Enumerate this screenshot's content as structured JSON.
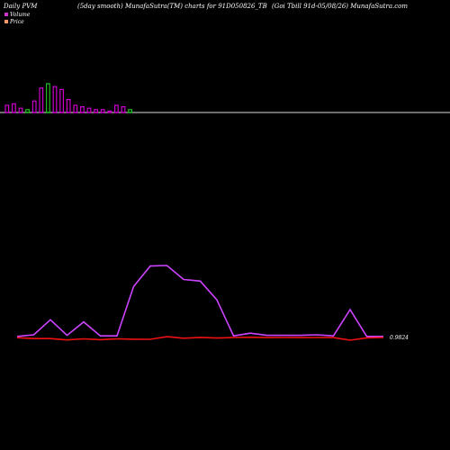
{
  "header": {
    "left": "Daily PVM",
    "center": "(5day smooth) MunafaSutra(TM) charts for 91D050826_TB",
    "right": "(Goi  Tbill 91d-05/08/26) MunafaSutra.com"
  },
  "legend": [
    {
      "label": "Volume",
      "color": "#cc33cc"
    },
    {
      "label": "Price",
      "color": "#ff9966"
    }
  ],
  "chart_data": [
    {
      "type": "bar",
      "series": [
        {
          "name": "Volume",
          "values": [
            5,
            6,
            3,
            2,
            8,
            17,
            20,
            18,
            16,
            9,
            5,
            4,
            3,
            2,
            2,
            1,
            5,
            4,
            2
          ]
        }
      ],
      "colors": {
        "up": "#cc00cc",
        "down": "#22bb22"
      },
      "directions": [
        "up",
        "up",
        "up",
        "down",
        "up",
        "up",
        "down",
        "up",
        "up",
        "up",
        "up",
        "up",
        "up",
        "up",
        "up",
        "up",
        "up",
        "up",
        "down"
      ],
      "grid": false
    },
    {
      "type": "line",
      "x": [
        0,
        1,
        2,
        3,
        4,
        5,
        6,
        7,
        8,
        9,
        10,
        11,
        12,
        13,
        14,
        15,
        16,
        17,
        18,
        19,
        20,
        21,
        22
      ],
      "series": [
        {
          "name": "Volume",
          "color": "#cc44ff",
          "values": [
            2,
            5,
            33,
            4,
            29,
            3,
            3,
            95,
            133,
            134,
            108,
            105,
            70,
            3,
            8,
            4,
            4,
            4,
            5,
            3,
            52,
            2,
            2
          ]
        },
        {
          "name": "Price",
          "color": "#ee1111",
          "values": [
            0.94,
            0.6,
            0.6,
            0.1,
            0.5,
            0.2,
            0.5,
            0.35,
            0.34,
            1.3,
            0.75,
            1.05,
            0.8,
            1.0,
            1.1,
            0.95,
            1.0,
            0.95,
            1.0,
            0.95,
            0.0,
            0.85,
            1.0
          ]
        }
      ],
      "annotation": "0.9824",
      "grid": false
    }
  ]
}
